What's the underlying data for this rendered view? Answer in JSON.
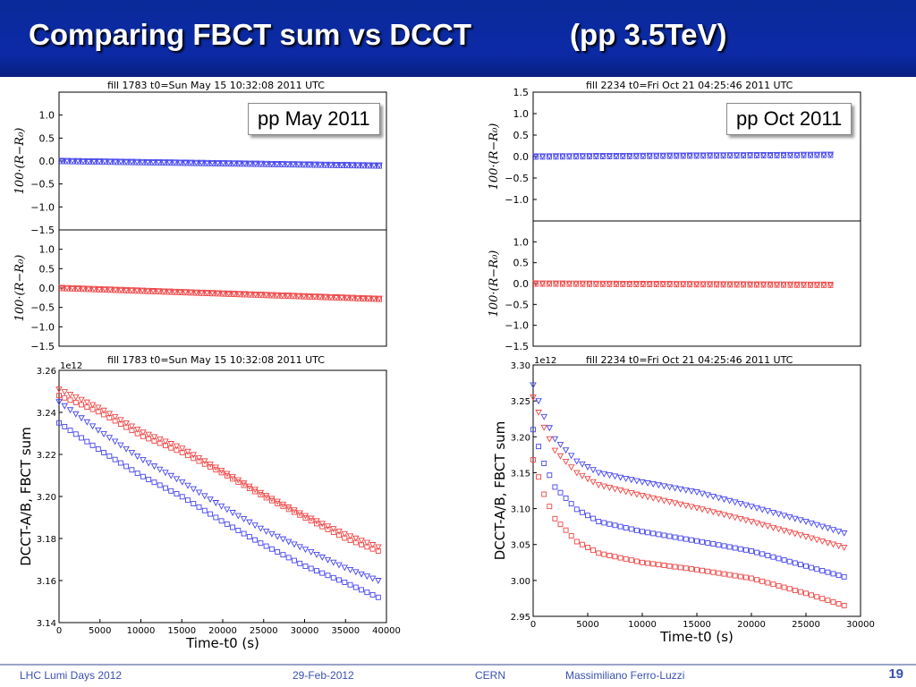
{
  "slide": {
    "title": "Comparing FBCT sum vs DCCT            (pp 3.5TeV)",
    "callout_left": "pp May 2011",
    "callout_right": "pp Oct 2011",
    "footer": {
      "event": "LHC Lumi Days 2012",
      "date": "29-Feb-2012",
      "org": "CERN",
      "author": "Massimiliano Ferro-Luzzi",
      "page": "19"
    }
  },
  "colors": {
    "beam_blue": "#4444ee",
    "beam_red": "#ee4444",
    "title_bg": "#0c2aa6",
    "footer_text": "#3a50b0"
  },
  "chart_data": [
    {
      "id": "may_ratio",
      "type": "scatter",
      "title": "fill 1783 t0=Sun May 15 10:32:08 2011 UTC",
      "ylabel": "100·(R−R₀)",
      "subplots": [
        {
          "ylim": [
            -1.5,
            1.5
          ],
          "yticks": [
            "−1.5",
            "−1.0",
            "−0.5",
            "0.0",
            "0.5",
            "1.0"
          ],
          "series": [
            {
              "color": "blue",
              "markers": [
                "triangle-down",
                "square"
              ],
              "x": [
                0,
                39000
              ],
              "y": [
                0.0,
                -0.1
              ],
              "n": 60
            }
          ]
        },
        {
          "ylim": [
            -1.5,
            1.5
          ],
          "yticks": [
            "−1.5",
            "−1.0",
            "−0.5",
            "0.0",
            "0.5",
            "1.0"
          ],
          "series": [
            {
              "color": "red",
              "markers": [
                "triangle-down",
                "square"
              ],
              "x": [
                0,
                39000
              ],
              "y": [
                0.0,
                -0.28
              ],
              "n": 60
            }
          ]
        }
      ]
    },
    {
      "id": "oct_ratio",
      "type": "scatter",
      "title": "fill 2234 t0=Fri Oct 21 04:25:46 2011 UTC",
      "ylabel": "100·(R−R₀)",
      "subplots": [
        {
          "ylim": [
            -1.5,
            1.5
          ],
          "yticks": [
            "−1.0",
            "−0.5",
            "0.0",
            "0.5",
            "1.0",
            "1.5"
          ],
          "series": [
            {
              "color": "blue",
              "markers": [
                "triangle-down",
                "square"
              ],
              "x": [
                0,
                28500
              ],
              "y": [
                0.0,
                0.04
              ],
              "n": 45
            }
          ]
        },
        {
          "ylim": [
            -1.5,
            1.5
          ],
          "yticks": [
            "−1.5",
            "−1.0",
            "−0.5",
            "0.0",
            "0.5",
            "1.0"
          ],
          "series": [
            {
              "color": "red",
              "markers": [
                "triangle-down",
                "square"
              ],
              "x": [
                0,
                28500
              ],
              "y": [
                0.0,
                -0.03
              ],
              "n": 45
            }
          ]
        }
      ]
    },
    {
      "id": "may_intensity",
      "type": "scatter",
      "title": "fill 1783 t0=Sun May 15 10:32:08 2011 UTC",
      "xlabel": "Time-t0 (s)",
      "ylabel": "DCCT-A/B, FBCT sum",
      "multiplier": "1e12",
      "xlim": [
        0,
        40000
      ],
      "ylim": [
        3.14,
        3.26
      ],
      "xticks": [
        "0",
        "5000",
        "10000",
        "15000",
        "20000",
        "25000",
        "30000",
        "35000",
        "40000"
      ],
      "yticks": [
        "3.14",
        "3.16",
        "3.18",
        "3.20",
        "3.22",
        "3.24",
        "3.26"
      ],
      "series": [
        {
          "name": "red DCCT",
          "color": "red",
          "marker": "triangle-down",
          "points": [
            [
              0,
              3.251
            ],
            [
              5000,
              3.242
            ],
            [
              10000,
              3.231
            ],
            [
              15000,
              3.223
            ],
            [
              20000,
              3.212
            ],
            [
              25000,
              3.201
            ],
            [
              30000,
              3.191
            ],
            [
              35000,
              3.182
            ],
            [
              39000,
              3.176
            ]
          ]
        },
        {
          "name": "red FBCT",
          "color": "red",
          "marker": "square",
          "points": [
            [
              0,
              3.248
            ],
            [
              5000,
              3.24
            ],
            [
              10000,
              3.229
            ],
            [
              15000,
              3.221
            ],
            [
              20000,
              3.211
            ],
            [
              25000,
              3.2
            ],
            [
              30000,
              3.19
            ],
            [
              35000,
              3.18
            ],
            [
              39000,
              3.174
            ]
          ]
        },
        {
          "name": "blue DCCT",
          "color": "blue",
          "marker": "triangle-down",
          "points": [
            [
              0,
              3.245
            ],
            [
              5000,
              3.231
            ],
            [
              10000,
              3.218
            ],
            [
              15000,
              3.207
            ],
            [
              20000,
              3.195
            ],
            [
              25000,
              3.184
            ],
            [
              30000,
              3.175
            ],
            [
              35000,
              3.166
            ],
            [
              39000,
              3.16
            ]
          ]
        },
        {
          "name": "blue FBCT",
          "color": "blue",
          "marker": "square",
          "points": [
            [
              0,
              3.235
            ],
            [
              5000,
              3.222
            ],
            [
              10000,
              3.21
            ],
            [
              15000,
              3.2
            ],
            [
              20000,
              3.188
            ],
            [
              25000,
              3.177
            ],
            [
              30000,
              3.167
            ],
            [
              35000,
              3.159
            ],
            [
              39000,
              3.152
            ]
          ]
        }
      ]
    },
    {
      "id": "oct_intensity",
      "type": "scatter",
      "title": "fill 2234 t0=Fri Oct 21 04:25:46 2011 UTC",
      "xlabel": "Time-t0 (s)",
      "ylabel": "DCCT-A/B, FBCT sum",
      "multiplier": "1e12",
      "xlim": [
        0,
        30000
      ],
      "ylim": [
        2.95,
        3.3
      ],
      "xticks": [
        "0",
        "5000",
        "10000",
        "15000",
        "20000",
        "25000",
        "30000"
      ],
      "yticks": [
        "2.95",
        "3.00",
        "3.05",
        "3.10",
        "3.15",
        "3.20",
        "3.25",
        "3.30"
      ],
      "series": [
        {
          "name": "blue DCCT",
          "color": "blue",
          "marker": "triangle-down",
          "points": [
            [
              0,
              3.272
            ],
            [
              1000,
              3.228
            ],
            [
              2000,
              3.197
            ],
            [
              4000,
              3.166
            ],
            [
              6000,
              3.15
            ],
            [
              10000,
              3.137
            ],
            [
              15000,
              3.123
            ],
            [
              20000,
              3.103
            ],
            [
              25000,
              3.082
            ],
            [
              28500,
              3.066
            ]
          ]
        },
        {
          "name": "red DCCT",
          "color": "red",
          "marker": "triangle-down",
          "points": [
            [
              0,
              3.255
            ],
            [
              1000,
              3.213
            ],
            [
              2000,
              3.181
            ],
            [
              4000,
              3.15
            ],
            [
              6000,
              3.133
            ],
            [
              10000,
              3.118
            ],
            [
              15000,
              3.101
            ],
            [
              20000,
              3.082
            ],
            [
              25000,
              3.061
            ],
            [
              28500,
              3.046
            ]
          ]
        },
        {
          "name": "blue FBCT",
          "color": "blue",
          "marker": "square",
          "points": [
            [
              0,
              3.21
            ],
            [
              1000,
              3.163
            ],
            [
              2000,
              3.13
            ],
            [
              4000,
              3.099
            ],
            [
              6000,
              3.082
            ],
            [
              10000,
              3.068
            ],
            [
              15000,
              3.055
            ],
            [
              20000,
              3.041
            ],
            [
              25000,
              3.02
            ],
            [
              28500,
              3.005
            ]
          ]
        },
        {
          "name": "red FBCT",
          "color": "red",
          "marker": "square",
          "points": [
            [
              0,
              3.168
            ],
            [
              1000,
              3.12
            ],
            [
              2000,
              3.086
            ],
            [
              4000,
              3.054
            ],
            [
              6000,
              3.038
            ],
            [
              10000,
              3.025
            ],
            [
              15000,
              3.015
            ],
            [
              20000,
              3.003
            ],
            [
              25000,
              2.982
            ],
            [
              28500,
              2.965
            ]
          ]
        }
      ]
    }
  ]
}
